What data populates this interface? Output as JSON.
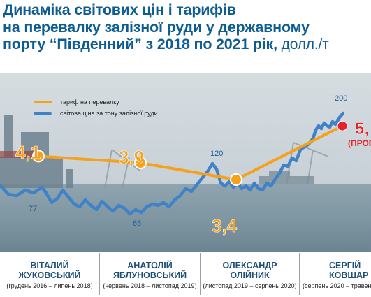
{
  "title": {
    "line1": "Динаміка світових цін і тарифів",
    "line2": "на перевалку залізної руди у державному",
    "line3": "порту “Південний” з 2018 по 2021 рік,",
    "unit": "долл./т"
  },
  "legend": {
    "tariff": "тариф на перевалку",
    "price": "світова ціна за тону залізної руди"
  },
  "colors": {
    "tariff": "#f5a11c",
    "price": "#3f82c8",
    "forecast_dot": "#e3222a",
    "forecast_text": "#e3222a",
    "title": "#0e5d92"
  },
  "chart_data": {
    "type": "line",
    "series": [
      {
        "name": "тариф на перевалку",
        "x": [
          0,
          1,
          2,
          3
        ],
        "values": [
          4.1,
          3.9,
          3.4,
          5.0
        ],
        "labels": [
          "4,1",
          "3,9",
          "3,4",
          "5,"
        ]
      },
      {
        "name": "світова ціна за тону залізної руди",
        "labels": [
          "77",
          "65",
          "120",
          "200"
        ]
      }
    ],
    "forecast_label": "(ПРОГ"
  },
  "ministers": [
    {
      "name_line1": "ВІТАЛИЙ",
      "name_line2": "ЖУКОВСЬКИЙ",
      "term": "(грудень 2016 – липень 2018)"
    },
    {
      "name_line1": "АНАТОЛІЙ",
      "name_line2": "ЯБЛУНОВСЬКИЙ",
      "term": "(червень 2018 – листопад 2019)"
    },
    {
      "name_line1": "ОЛЕКСАНДР",
      "name_line2": "ОЛІЙНИК",
      "term": "(листопад 2019 – серпень 2020)"
    },
    {
      "name_line1": "СЕРГІЙ",
      "name_line2": "КОВШАР",
      "term": "(серпень 2020 – травень"
    }
  ]
}
